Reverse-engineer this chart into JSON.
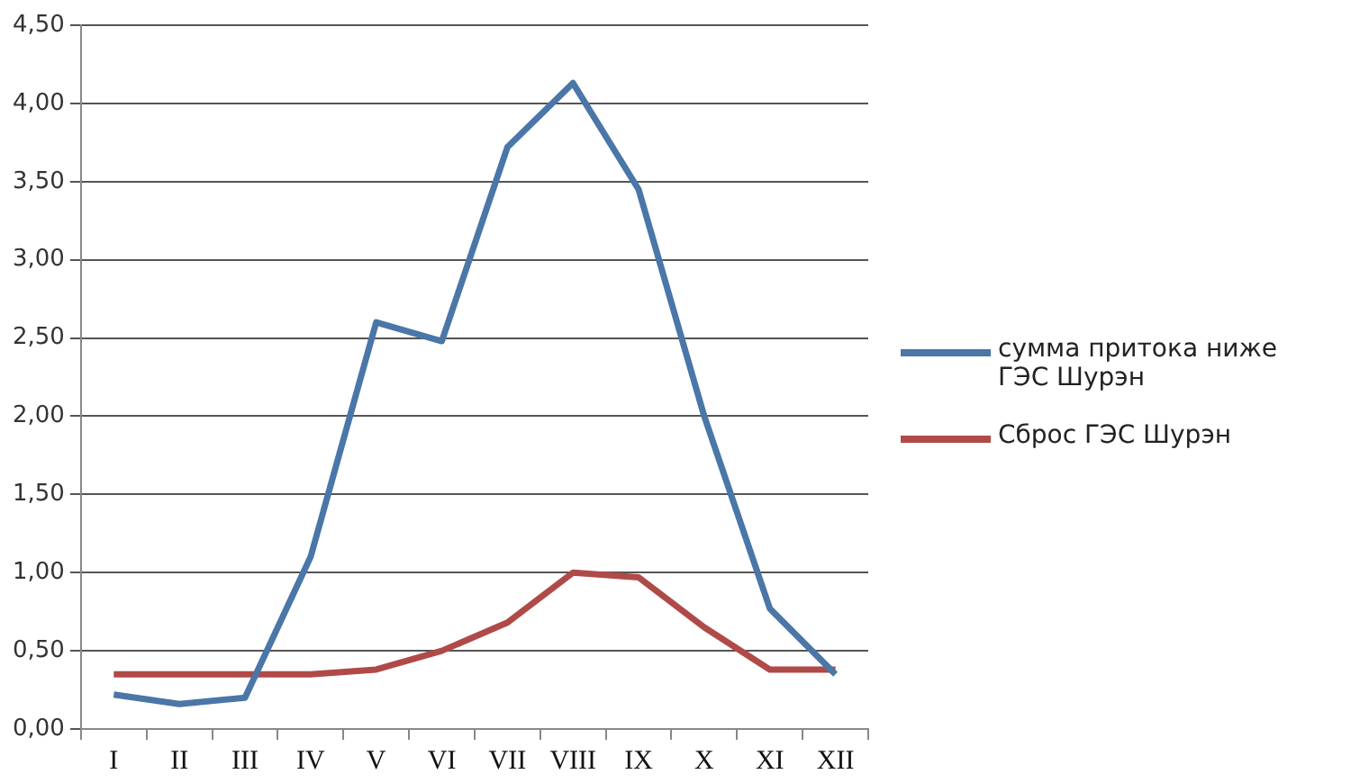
{
  "chart_data": {
    "type": "line",
    "categories": [
      "I",
      "II",
      "III",
      "IV",
      "V",
      "VI",
      "VII",
      "VIII",
      "IX",
      "X",
      "XI",
      "XII"
    ],
    "series": [
      {
        "name": "сумма притока ниже ГЭС Шурэн",
        "color": "#4a76a8",
        "values": [
          0.22,
          0.16,
          0.2,
          1.1,
          2.6,
          2.48,
          3.72,
          4.13,
          3.45,
          2.0,
          0.77,
          0.35
        ]
      },
      {
        "name": "Сброс ГЭС Шурэн",
        "color": "#b04a48",
        "values": [
          0.35,
          0.35,
          0.35,
          0.35,
          0.38,
          0.5,
          0.68,
          1.0,
          0.97,
          0.65,
          0.38,
          0.38
        ]
      }
    ],
    "ylim": [
      0,
      4.5
    ],
    "yticks": [
      {
        "value": 0,
        "label": "0,00"
      },
      {
        "value": 0.5,
        "label": "0,50"
      },
      {
        "value": 1,
        "label": "1,00"
      },
      {
        "value": 1.5,
        "label": "1,50"
      },
      {
        "value": 2,
        "label": "2,00"
      },
      {
        "value": 2.5,
        "label": "2,50"
      },
      {
        "value": 3,
        "label": "3,00"
      },
      {
        "value": 3.5,
        "label": "3,50"
      },
      {
        "value": 4,
        "label": "4,00"
      },
      {
        "value": 4.5,
        "label": "4,50"
      }
    ],
    "grid": "y",
    "legend": "right",
    "marker": "none",
    "line_style": "solid"
  }
}
